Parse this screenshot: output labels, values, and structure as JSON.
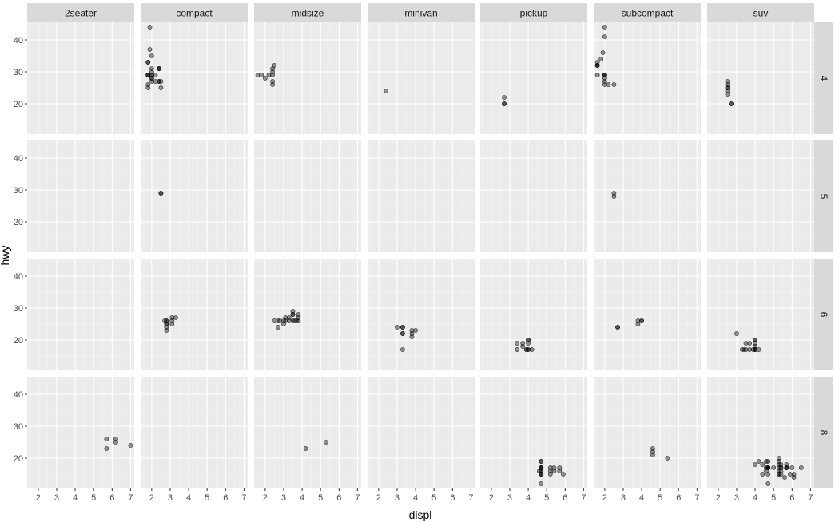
{
  "chart_data": {
    "type": "scatter",
    "facet_cols": [
      "2seater",
      "compact",
      "midsize",
      "minivan",
      "pickup",
      "subcompact",
      "suv"
    ],
    "facet_rows": [
      "4",
      "5",
      "6",
      "8"
    ],
    "xlabel": "displ",
    "ylabel": "hwy",
    "xlim": [
      1.4,
      7.2
    ],
    "ylim": [
      10.5,
      45.5
    ],
    "x_ticks": [
      2,
      3,
      4,
      5,
      6,
      7
    ],
    "y_ticks": [
      20,
      30,
      40
    ],
    "point_alpha": 0.4,
    "panels": [
      {
        "row": "4",
        "col": "compact",
        "points": [
          [
            1.8,
            29
          ],
          [
            1.8,
            29
          ],
          [
            2.0,
            31
          ],
          [
            2.0,
            30
          ],
          [
            1.8,
            26
          ],
          [
            1.8,
            25
          ],
          [
            2.0,
            28
          ],
          [
            2.0,
            27
          ],
          [
            1.9,
            44
          ],
          [
            2.0,
            29
          ],
          [
            2.0,
            29
          ],
          [
            2.0,
            28
          ],
          [
            1.8,
            29
          ],
          [
            1.8,
            33
          ],
          [
            1.8,
            33
          ],
          [
            1.9,
            37
          ],
          [
            2.0,
            35
          ],
          [
            2.4,
            31
          ],
          [
            2.4,
            31
          ],
          [
            2.4,
            27
          ],
          [
            2.5,
            27
          ],
          [
            2.5,
            25
          ],
          [
            2.2,
            29
          ],
          [
            2.2,
            27
          ],
          [
            2.4,
            27
          ],
          [
            2.4,
            31
          ]
        ]
      },
      {
        "row": "4",
        "col": "midsize",
        "points": [
          [
            1.8,
            29
          ],
          [
            2.0,
            28
          ],
          [
            2.4,
            27
          ],
          [
            2.4,
            26
          ],
          [
            2.4,
            31
          ],
          [
            2.5,
            32
          ],
          [
            2.4,
            30
          ],
          [
            2.2,
            29
          ],
          [
            2.4,
            29
          ],
          [
            1.6,
            29
          ]
        ]
      },
      {
        "row": "4",
        "col": "minivan",
        "points": [
          [
            2.4,
            24
          ]
        ]
      },
      {
        "row": "4",
        "col": "pickup",
        "points": [
          [
            2.7,
            20
          ],
          [
            2.7,
            20
          ],
          [
            2.7,
            22
          ]
        ]
      },
      {
        "row": "4",
        "col": "subcompact",
        "points": [
          [
            1.6,
            33
          ],
          [
            1.6,
            32
          ],
          [
            1.6,
            32
          ],
          [
            1.6,
            29
          ],
          [
            1.6,
            32
          ],
          [
            1.8,
            34
          ],
          [
            1.9,
            36
          ],
          [
            2.0,
            44
          ],
          [
            2.0,
            41
          ],
          [
            2.0,
            29
          ],
          [
            2.0,
            26
          ],
          [
            2.0,
            29
          ],
          [
            2.0,
            28
          ],
          [
            2.0,
            27
          ],
          [
            2.2,
            26
          ],
          [
            2.5,
            26
          ],
          [
            2.0,
            29
          ]
        ]
      },
      {
        "row": "4",
        "col": "suv",
        "points": [
          [
            2.5,
            25
          ],
          [
            2.5,
            23
          ],
          [
            2.5,
            27
          ],
          [
            2.5,
            25
          ],
          [
            2.5,
            26
          ],
          [
            2.5,
            24
          ],
          [
            2.7,
            20
          ],
          [
            2.7,
            20
          ]
        ]
      },
      {
        "row": "5",
        "col": "compact",
        "points": [
          [
            2.5,
            29
          ],
          [
            2.5,
            29
          ]
        ]
      },
      {
        "row": "5",
        "col": "subcompact",
        "points": [
          [
            2.5,
            28
          ],
          [
            2.5,
            29
          ]
        ]
      },
      {
        "row": "6",
        "col": "compact",
        "points": [
          [
            2.8,
            26
          ],
          [
            2.8,
            26
          ],
          [
            2.8,
            24
          ],
          [
            2.8,
            25
          ],
          [
            2.8,
            23
          ],
          [
            3.1,
            27
          ],
          [
            3.1,
            25
          ],
          [
            3.3,
            27
          ],
          [
            2.8,
            25
          ],
          [
            3.1,
            26
          ],
          [
            2.7,
            26
          ]
        ]
      },
      {
        "row": "6",
        "col": "midsize",
        "points": [
          [
            2.5,
            26
          ],
          [
            2.8,
            26
          ],
          [
            3.0,
            26
          ],
          [
            3.0,
            25
          ],
          [
            3.1,
            26
          ],
          [
            3.1,
            27
          ],
          [
            3.3,
            27
          ],
          [
            3.3,
            26
          ],
          [
            3.5,
            28
          ],
          [
            3.5,
            26
          ],
          [
            3.8,
            28
          ],
          [
            3.5,
            29
          ],
          [
            3.7,
            26
          ],
          [
            3.8,
            27
          ],
          [
            3.8,
            26
          ],
          [
            3.6,
            26
          ],
          [
            2.7,
            26
          ],
          [
            2.7,
            24
          ],
          [
            3.5,
            28
          ]
        ]
      },
      {
        "row": "6",
        "col": "minivan",
        "points": [
          [
            3.0,
            24
          ],
          [
            3.3,
            24
          ],
          [
            3.3,
            22
          ],
          [
            3.3,
            22
          ],
          [
            3.3,
            24
          ],
          [
            3.3,
            17
          ],
          [
            3.8,
            22
          ],
          [
            3.8,
            21
          ],
          [
            3.8,
            23
          ],
          [
            4.0,
            23
          ]
        ]
      },
      {
        "row": "6",
        "col": "pickup",
        "points": [
          [
            3.7,
            19
          ],
          [
            3.7,
            18
          ],
          [
            3.9,
            17
          ],
          [
            3.9,
            17
          ],
          [
            4.2,
            17
          ],
          [
            4.0,
            17
          ],
          [
            4.0,
            17
          ],
          [
            4.0,
            20
          ],
          [
            4.0,
            19
          ],
          [
            3.4,
            17
          ],
          [
            3.4,
            19
          ],
          [
            4.0,
            20
          ]
        ]
      },
      {
        "row": "6",
        "col": "subcompact",
        "points": [
          [
            2.7,
            24
          ],
          [
            2.7,
            24
          ],
          [
            3.8,
            26
          ],
          [
            3.8,
            25
          ],
          [
            4.0,
            26
          ],
          [
            4.0,
            26
          ]
        ]
      },
      {
        "row": "6",
        "col": "suv",
        "points": [
          [
            3.0,
            22
          ],
          [
            3.4,
            17
          ],
          [
            3.5,
            19
          ],
          [
            3.7,
            19
          ],
          [
            3.7,
            17
          ],
          [
            3.9,
            17
          ],
          [
            4.0,
            17
          ],
          [
            4.0,
            20
          ],
          [
            4.0,
            19
          ],
          [
            4.0,
            17
          ],
          [
            4.0,
            18
          ],
          [
            4.0,
            20
          ],
          [
            4.2,
            17
          ],
          [
            3.3,
            17
          ],
          [
            3.5,
            17
          ],
          [
            4.0,
            17
          ]
        ]
      },
      {
        "row": "8",
        "col": "2seater",
        "points": [
          [
            5.7,
            26
          ],
          [
            5.7,
            23
          ],
          [
            6.2,
            26
          ],
          [
            6.2,
            25
          ],
          [
            7.0,
            24
          ]
        ]
      },
      {
        "row": "8",
        "col": "midsize",
        "points": [
          [
            4.2,
            23
          ],
          [
            5.3,
            25
          ]
        ]
      },
      {
        "row": "8",
        "col": "pickup",
        "points": [
          [
            4.7,
            19
          ],
          [
            4.7,
            17
          ],
          [
            4.7,
            15
          ],
          [
            4.7,
            15
          ],
          [
            4.7,
            17
          ],
          [
            4.7,
            12
          ],
          [
            4.7,
            17
          ],
          [
            5.2,
            17
          ],
          [
            5.2,
            15
          ],
          [
            5.7,
            16
          ],
          [
            5.9,
            15
          ],
          [
            4.6,
            16
          ],
          [
            5.4,
            17
          ],
          [
            5.4,
            16
          ],
          [
            4.7,
            19
          ],
          [
            4.7,
            16
          ],
          [
            5.7,
            17
          ],
          [
            4.7,
            16
          ],
          [
            4.7,
            17
          ],
          [
            5.2,
            16
          ],
          [
            4.7,
            15
          ]
        ]
      },
      {
        "row": "8",
        "col": "subcompact",
        "points": [
          [
            4.6,
            23
          ],
          [
            4.6,
            22
          ],
          [
            5.4,
            20
          ],
          [
            4.6,
            21
          ]
        ]
      },
      {
        "row": "8",
        "col": "suv",
        "points": [
          [
            4.7,
            19
          ],
          [
            4.7,
            17
          ],
          [
            4.7,
            15
          ],
          [
            4.7,
            17
          ],
          [
            4.7,
            12
          ],
          [
            5.7,
            17
          ],
          [
            6.1,
            14
          ],
          [
            5.3,
            16
          ],
          [
            5.3,
            20
          ],
          [
            5.3,
            15
          ],
          [
            5.7,
            18
          ],
          [
            6.0,
            17
          ],
          [
            5.3,
            19
          ],
          [
            5.3,
            17
          ],
          [
            5.3,
            15
          ],
          [
            4.6,
            19
          ],
          [
            5.4,
            17
          ],
          [
            5.4,
            18
          ],
          [
            4.0,
            18
          ],
          [
            4.4,
            18
          ],
          [
            4.2,
            19
          ],
          [
            4.6,
            17
          ],
          [
            5.7,
            17
          ],
          [
            6.5,
            17
          ],
          [
            4.4,
            15
          ],
          [
            4.6,
            16
          ],
          [
            5.4,
            15
          ],
          [
            5.4,
            16
          ],
          [
            5.0,
            17
          ],
          [
            4.7,
            17
          ],
          [
            4.7,
            17
          ],
          [
            5.7,
            17
          ],
          [
            6.1,
            15
          ],
          [
            5.4,
            17
          ],
          [
            5.9,
            15
          ],
          [
            5.3,
            18
          ],
          [
            5.6,
            14
          ]
        ]
      }
    ]
  },
  "colors": {
    "panel_background": "#ebebeb",
    "grid_major": "#ffffff",
    "grid_minor": "#f5f5f5",
    "strip_background": "#d9d9d9",
    "point_fill": "#000000"
  }
}
